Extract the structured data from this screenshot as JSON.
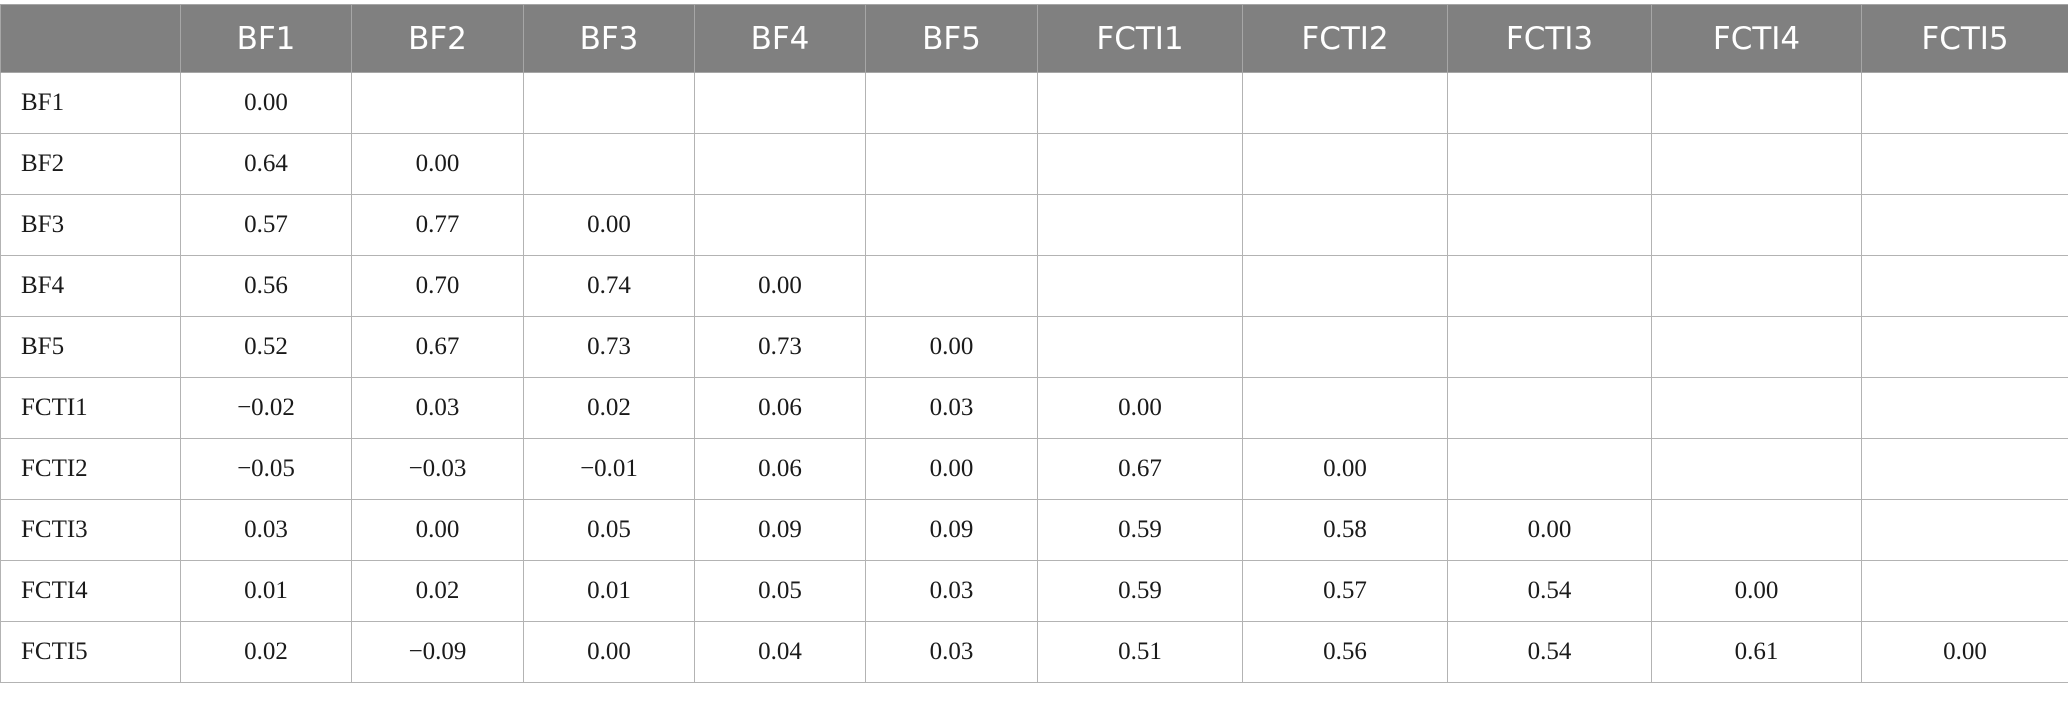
{
  "table": {
    "corner": "",
    "columns": [
      "BF1",
      "BF2",
      "BF3",
      "BF4",
      "BF5",
      "FCTI1",
      "FCTI2",
      "FCTI3",
      "FCTI4",
      "FCTI5"
    ],
    "rows": [
      {
        "label": "BF1",
        "cells": [
          "0.00",
          "",
          "",
          "",
          "",
          "",
          "",
          "",
          "",
          ""
        ]
      },
      {
        "label": "BF2",
        "cells": [
          "0.64",
          "0.00",
          "",
          "",
          "",
          "",
          "",
          "",
          "",
          ""
        ]
      },
      {
        "label": "BF3",
        "cells": [
          "0.57",
          "0.77",
          "0.00",
          "",
          "",
          "",
          "",
          "",
          "",
          ""
        ]
      },
      {
        "label": "BF4",
        "cells": [
          "0.56",
          "0.70",
          "0.74",
          "0.00",
          "",
          "",
          "",
          "",
          "",
          ""
        ]
      },
      {
        "label": "BF5",
        "cells": [
          "0.52",
          "0.67",
          "0.73",
          "0.73",
          "0.00",
          "",
          "",
          "",
          "",
          ""
        ]
      },
      {
        "label": "FCTI1",
        "cells": [
          "−0.02",
          "0.03",
          "0.02",
          "0.06",
          "0.03",
          "0.00",
          "",
          "",
          "",
          ""
        ]
      },
      {
        "label": "FCTI2",
        "cells": [
          "−0.05",
          "−0.03",
          "−0.01",
          "0.06",
          "0.00",
          "0.67",
          "0.00",
          "",
          "",
          ""
        ]
      },
      {
        "label": "FCTI3",
        "cells": [
          "0.03",
          "0.00",
          "0.05",
          "0.09",
          "0.09",
          "0.59",
          "0.58",
          "0.00",
          "",
          ""
        ]
      },
      {
        "label": "FCTI4",
        "cells": [
          "0.01",
          "0.02",
          "0.01",
          "0.05",
          "0.03",
          "0.59",
          "0.57",
          "0.54",
          "0.00",
          ""
        ]
      },
      {
        "label": "FCTI5",
        "cells": [
          "0.02",
          "−0.09",
          "0.00",
          "0.04",
          "0.03",
          "0.51",
          "0.56",
          "0.54",
          "0.61",
          "0.00"
        ]
      }
    ]
  }
}
